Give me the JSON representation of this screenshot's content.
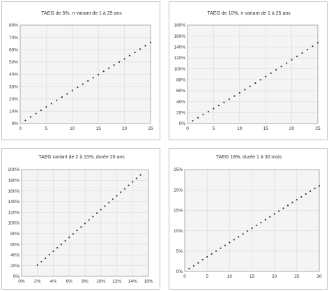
{
  "chart_data": [
    {
      "type": "scatter",
      "title_pre": "TAEG de 5%, ",
      "title_em": "n",
      "title_post": " variant de 1 à 25 ans",
      "x_ticks": [
        0,
        5,
        10,
        15,
        20,
        25
      ],
      "y_ticks": [
        0,
        10,
        20,
        30,
        40,
        50,
        60,
        70,
        80
      ],
      "x_tick_labels": [
        "0",
        "5",
        "10",
        "15",
        "20",
        "25"
      ],
      "y_tick_labels": [
        "0%",
        "10%",
        "20%",
        "30%",
        "40%",
        "50%",
        "60%",
        "70%",
        "80%"
      ],
      "xlim": [
        0,
        25
      ],
      "ylim": [
        0,
        80
      ],
      "x": [
        1,
        2,
        3,
        4,
        5,
        6,
        7,
        8,
        9,
        10,
        11,
        12,
        13,
        14,
        15,
        16,
        17,
        18,
        19,
        20,
        21,
        22,
        23,
        24,
        25
      ],
      "y": [
        2.5,
        5.3,
        8.1,
        10.8,
        13.5,
        16.2,
        18.9,
        21.5,
        24.1,
        26.8,
        29.4,
        32.0,
        34.6,
        37.2,
        39.8,
        42.4,
        44.9,
        47.5,
        50.0,
        52.6,
        55.2,
        57.8,
        60.5,
        63.2,
        65.9
      ]
    },
    {
      "type": "scatter",
      "title_pre": "TAEG de 10%, ",
      "title_em": "n",
      "title_post": " variant de 1 à 25 ans",
      "x_ticks": [
        0,
        5,
        10,
        15,
        20,
        25
      ],
      "y_ticks": [
        0,
        20,
        40,
        60,
        80,
        100,
        120,
        140,
        160,
        180
      ],
      "x_tick_labels": [
        "0",
        "5",
        "10",
        "15",
        "20",
        "25"
      ],
      "y_tick_labels": [
        "0%",
        "20%",
        "40%",
        "60%",
        "80%",
        "100%",
        "120%",
        "140%",
        "160%",
        "180%"
      ],
      "xlim": [
        0,
        25
      ],
      "ylim": [
        0,
        180
      ],
      "x": [
        1,
        2,
        3,
        4,
        5,
        6,
        7,
        8,
        9,
        10,
        11,
        12,
        13,
        14,
        15,
        16,
        17,
        18,
        19,
        20,
        21,
        22,
        23,
        24,
        25
      ],
      "y": [
        5,
        10.5,
        16.2,
        21.8,
        27.4,
        33.1,
        38.8,
        44.5,
        50.3,
        56.2,
        62.0,
        68.0,
        74.0,
        80.0,
        86.0,
        92.1,
        98.2,
        104.3,
        110.5,
        116.7,
        122.9,
        129.0,
        135.2,
        141.4,
        147.8
      ]
    },
    {
      "type": "scatter",
      "title_pre": "TAEG variant de 2 à 15%, durée 20 ans",
      "title_em": "",
      "title_post": "",
      "x_ticks": [
        0,
        2,
        4,
        6,
        8,
        10,
        12,
        14,
        16
      ],
      "y_ticks": [
        0,
        20,
        40,
        60,
        80,
        100,
        120,
        140,
        160,
        180,
        200
      ],
      "x_tick_labels": [
        "0%",
        "2%",
        "4%",
        "6%",
        "8%",
        "10%",
        "12%",
        "14%",
        "16%"
      ],
      "y_tick_labels": [
        "0%",
        "20%",
        "40%",
        "60%",
        "80%",
        "100%",
        "120%",
        "140%",
        "160%",
        "180%",
        "200%"
      ],
      "xlim": [
        0,
        16
      ],
      "ylim": [
        0,
        200
      ],
      "x": [
        2,
        2.5,
        3,
        3.5,
        4,
        4.5,
        5,
        5.5,
        6,
        6.5,
        7,
        7.5,
        8,
        8.5,
        9,
        9.5,
        10,
        10.5,
        11,
        11.5,
        12,
        12.5,
        13,
        13.5,
        14,
        14.5,
        15
      ],
      "y": [
        21,
        27.5,
        34,
        40.5,
        47,
        53.5,
        60,
        66.5,
        73,
        79.5,
        86,
        92.5,
        99,
        105.5,
        112,
        118.5,
        125,
        131.5,
        138,
        144.5,
        151,
        157.5,
        164,
        170.5,
        177,
        183.5,
        190
      ]
    },
    {
      "type": "scatter",
      "title_pre": "TAEG 18%, durée 1 à 30 mois",
      "title_em": "",
      "title_post": "",
      "x_ticks": [
        0,
        5,
        10,
        15,
        20,
        25,
        30
      ],
      "y_ticks": [
        0,
        5,
        10,
        15,
        20,
        25
      ],
      "x_tick_labels": [
        "0",
        "5",
        "10",
        "15",
        "20",
        "25",
        "30"
      ],
      "y_tick_labels": [
        "0%",
        "5%",
        "10%",
        "15%",
        "20%",
        "25%"
      ],
      "xlim": [
        0,
        30
      ],
      "ylim": [
        0,
        25
      ],
      "x": [
        1,
        2,
        3,
        4,
        5,
        6,
        7,
        8,
        9,
        10,
        11,
        12,
        13,
        14,
        15,
        16,
        17,
        18,
        19,
        20,
        21,
        22,
        23,
        24,
        25,
        26,
        27,
        28,
        29,
        30
      ],
      "y": [
        0.7,
        1.4,
        2.1,
        2.9,
        3.6,
        4.3,
        5.0,
        5.7,
        6.4,
        7.1,
        7.8,
        8.5,
        9.2,
        9.9,
        10.6,
        11.3,
        12.0,
        12.7,
        13.4,
        14.1,
        14.8,
        15.5,
        16.2,
        16.9,
        17.6,
        18.3,
        19.0,
        19.7,
        20.4,
        21.0
      ]
    }
  ]
}
